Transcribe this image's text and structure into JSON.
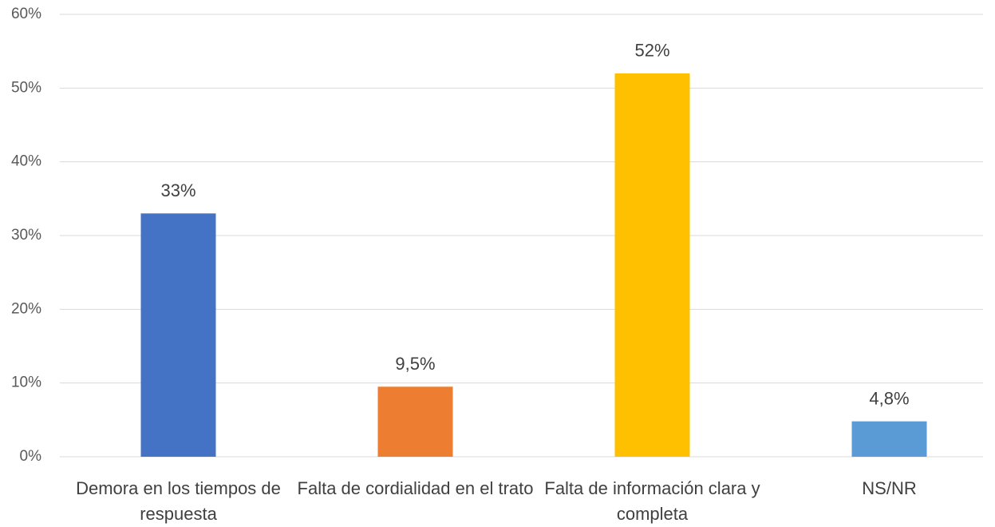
{
  "chart_data": {
    "type": "bar",
    "categories": [
      "Demora en los tiempos de respuesta",
      "Falta de cordialidad en el trato",
      "Falta de información clara y completa",
      "NS/NR"
    ],
    "values": [
      33,
      9.5,
      52,
      4.8
    ],
    "value_labels": [
      "33%",
      "9,5%",
      "52%",
      "4,8%"
    ],
    "colors": [
      "#4472c4",
      "#ed7d31",
      "#ffc000",
      "#5b9bd5"
    ],
    "ylim": [
      0,
      60
    ],
    "yticks": [
      {
        "value": 0,
        "label": "0%"
      },
      {
        "value": 10,
        "label": "10%"
      },
      {
        "value": 20,
        "label": "20%"
      },
      {
        "value": 30,
        "label": "30%"
      },
      {
        "value": 40,
        "label": "40%"
      },
      {
        "value": 50,
        "label": "50%"
      },
      {
        "value": 60,
        "label": "60%"
      }
    ],
    "grid": true
  }
}
